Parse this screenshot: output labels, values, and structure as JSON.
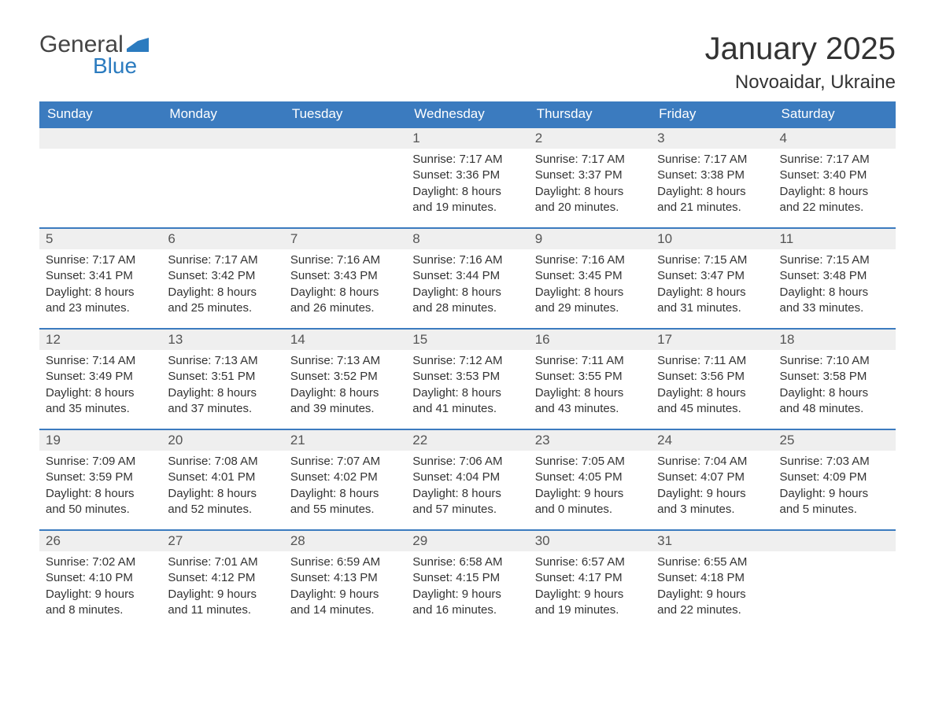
{
  "brand": {
    "word1": "General",
    "word2": "Blue",
    "word1_color": "#444444",
    "word2_color": "#2b7bbf"
  },
  "title": "January 2025",
  "location": "Novoaidar, Ukraine",
  "colors": {
    "header_bg": "#3b7bbf",
    "header_text": "#ffffff",
    "daynum_bg": "#efefef",
    "row_border": "#3b7bbf",
    "body_text": "#333333",
    "page_bg": "#ffffff"
  },
  "fonts": {
    "title_size_pt": 30,
    "location_size_pt": 18,
    "header_size_pt": 13,
    "body_size_pt": 11
  },
  "day_headers": [
    "Sunday",
    "Monday",
    "Tuesday",
    "Wednesday",
    "Thursday",
    "Friday",
    "Saturday"
  ],
  "weeks": [
    [
      {
        "empty": true
      },
      {
        "empty": true
      },
      {
        "empty": true
      },
      {
        "num": "1",
        "sunrise": "Sunrise: 7:17 AM",
        "sunset": "Sunset: 3:36 PM",
        "day1": "Daylight: 8 hours",
        "day2": "and 19 minutes."
      },
      {
        "num": "2",
        "sunrise": "Sunrise: 7:17 AM",
        "sunset": "Sunset: 3:37 PM",
        "day1": "Daylight: 8 hours",
        "day2": "and 20 minutes."
      },
      {
        "num": "3",
        "sunrise": "Sunrise: 7:17 AM",
        "sunset": "Sunset: 3:38 PM",
        "day1": "Daylight: 8 hours",
        "day2": "and 21 minutes."
      },
      {
        "num": "4",
        "sunrise": "Sunrise: 7:17 AM",
        "sunset": "Sunset: 3:40 PM",
        "day1": "Daylight: 8 hours",
        "day2": "and 22 minutes."
      }
    ],
    [
      {
        "num": "5",
        "sunrise": "Sunrise: 7:17 AM",
        "sunset": "Sunset: 3:41 PM",
        "day1": "Daylight: 8 hours",
        "day2": "and 23 minutes."
      },
      {
        "num": "6",
        "sunrise": "Sunrise: 7:17 AM",
        "sunset": "Sunset: 3:42 PM",
        "day1": "Daylight: 8 hours",
        "day2": "and 25 minutes."
      },
      {
        "num": "7",
        "sunrise": "Sunrise: 7:16 AM",
        "sunset": "Sunset: 3:43 PM",
        "day1": "Daylight: 8 hours",
        "day2": "and 26 minutes."
      },
      {
        "num": "8",
        "sunrise": "Sunrise: 7:16 AM",
        "sunset": "Sunset: 3:44 PM",
        "day1": "Daylight: 8 hours",
        "day2": "and 28 minutes."
      },
      {
        "num": "9",
        "sunrise": "Sunrise: 7:16 AM",
        "sunset": "Sunset: 3:45 PM",
        "day1": "Daylight: 8 hours",
        "day2": "and 29 minutes."
      },
      {
        "num": "10",
        "sunrise": "Sunrise: 7:15 AM",
        "sunset": "Sunset: 3:47 PM",
        "day1": "Daylight: 8 hours",
        "day2": "and 31 minutes."
      },
      {
        "num": "11",
        "sunrise": "Sunrise: 7:15 AM",
        "sunset": "Sunset: 3:48 PM",
        "day1": "Daylight: 8 hours",
        "day2": "and 33 minutes."
      }
    ],
    [
      {
        "num": "12",
        "sunrise": "Sunrise: 7:14 AM",
        "sunset": "Sunset: 3:49 PM",
        "day1": "Daylight: 8 hours",
        "day2": "and 35 minutes."
      },
      {
        "num": "13",
        "sunrise": "Sunrise: 7:13 AM",
        "sunset": "Sunset: 3:51 PM",
        "day1": "Daylight: 8 hours",
        "day2": "and 37 minutes."
      },
      {
        "num": "14",
        "sunrise": "Sunrise: 7:13 AM",
        "sunset": "Sunset: 3:52 PM",
        "day1": "Daylight: 8 hours",
        "day2": "and 39 minutes."
      },
      {
        "num": "15",
        "sunrise": "Sunrise: 7:12 AM",
        "sunset": "Sunset: 3:53 PM",
        "day1": "Daylight: 8 hours",
        "day2": "and 41 minutes."
      },
      {
        "num": "16",
        "sunrise": "Sunrise: 7:11 AM",
        "sunset": "Sunset: 3:55 PM",
        "day1": "Daylight: 8 hours",
        "day2": "and 43 minutes."
      },
      {
        "num": "17",
        "sunrise": "Sunrise: 7:11 AM",
        "sunset": "Sunset: 3:56 PM",
        "day1": "Daylight: 8 hours",
        "day2": "and 45 minutes."
      },
      {
        "num": "18",
        "sunrise": "Sunrise: 7:10 AM",
        "sunset": "Sunset: 3:58 PM",
        "day1": "Daylight: 8 hours",
        "day2": "and 48 minutes."
      }
    ],
    [
      {
        "num": "19",
        "sunrise": "Sunrise: 7:09 AM",
        "sunset": "Sunset: 3:59 PM",
        "day1": "Daylight: 8 hours",
        "day2": "and 50 minutes."
      },
      {
        "num": "20",
        "sunrise": "Sunrise: 7:08 AM",
        "sunset": "Sunset: 4:01 PM",
        "day1": "Daylight: 8 hours",
        "day2": "and 52 minutes."
      },
      {
        "num": "21",
        "sunrise": "Sunrise: 7:07 AM",
        "sunset": "Sunset: 4:02 PM",
        "day1": "Daylight: 8 hours",
        "day2": "and 55 minutes."
      },
      {
        "num": "22",
        "sunrise": "Sunrise: 7:06 AM",
        "sunset": "Sunset: 4:04 PM",
        "day1": "Daylight: 8 hours",
        "day2": "and 57 minutes."
      },
      {
        "num": "23",
        "sunrise": "Sunrise: 7:05 AM",
        "sunset": "Sunset: 4:05 PM",
        "day1": "Daylight: 9 hours",
        "day2": "and 0 minutes."
      },
      {
        "num": "24",
        "sunrise": "Sunrise: 7:04 AM",
        "sunset": "Sunset: 4:07 PM",
        "day1": "Daylight: 9 hours",
        "day2": "and 3 minutes."
      },
      {
        "num": "25",
        "sunrise": "Sunrise: 7:03 AM",
        "sunset": "Sunset: 4:09 PM",
        "day1": "Daylight: 9 hours",
        "day2": "and 5 minutes."
      }
    ],
    [
      {
        "num": "26",
        "sunrise": "Sunrise: 7:02 AM",
        "sunset": "Sunset: 4:10 PM",
        "day1": "Daylight: 9 hours",
        "day2": "and 8 minutes."
      },
      {
        "num": "27",
        "sunrise": "Sunrise: 7:01 AM",
        "sunset": "Sunset: 4:12 PM",
        "day1": "Daylight: 9 hours",
        "day2": "and 11 minutes."
      },
      {
        "num": "28",
        "sunrise": "Sunrise: 6:59 AM",
        "sunset": "Sunset: 4:13 PM",
        "day1": "Daylight: 9 hours",
        "day2": "and 14 minutes."
      },
      {
        "num": "29",
        "sunrise": "Sunrise: 6:58 AM",
        "sunset": "Sunset: 4:15 PM",
        "day1": "Daylight: 9 hours",
        "day2": "and 16 minutes."
      },
      {
        "num": "30",
        "sunrise": "Sunrise: 6:57 AM",
        "sunset": "Sunset: 4:17 PM",
        "day1": "Daylight: 9 hours",
        "day2": "and 19 minutes."
      },
      {
        "num": "31",
        "sunrise": "Sunrise: 6:55 AM",
        "sunset": "Sunset: 4:18 PM",
        "day1": "Daylight: 9 hours",
        "day2": "and 22 minutes."
      },
      {
        "empty": true
      }
    ]
  ]
}
